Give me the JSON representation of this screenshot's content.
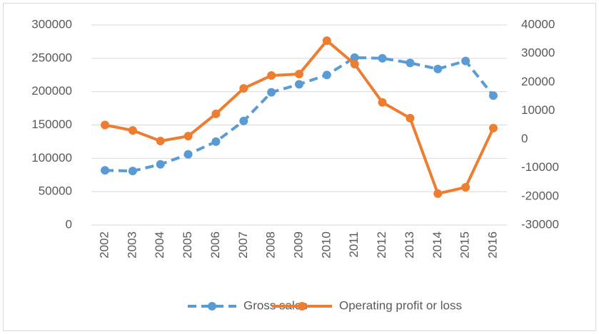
{
  "chart_data": {
    "type": "line",
    "categories": [
      "2002",
      "2003",
      "2004",
      "2005",
      "2006",
      "2007",
      "2008",
      "2009",
      "2010",
      "2011",
      "2012",
      "2013",
      "2014",
      "2015",
      "2016"
    ],
    "series": [
      {
        "name": "Gross sales",
        "color": "#5b9bd5",
        "dashed": true,
        "axis": "y",
        "values": [
          82000,
          81000,
          91000,
          106000,
          125000,
          156000,
          199000,
          211000,
          225000,
          251000,
          250000,
          243000,
          234000,
          246000,
          194000
        ]
      },
      {
        "name": "Operating profit or loss",
        "color": "#ed7d31",
        "dashed": false,
        "axis": "y2",
        "values": [
          5000,
          3100,
          -600,
          1100,
          8900,
          17800,
          22300,
          22800,
          34500,
          26300,
          12900,
          7400,
          -19000,
          -16800,
          3900
        ]
      }
    ],
    "ylim": [
      0,
      300000
    ],
    "yticks": [
      0,
      50000,
      100000,
      150000,
      200000,
      250000,
      300000
    ],
    "y2lim": [
      -30000,
      40000
    ],
    "y2ticks": [
      -30000,
      -20000,
      -10000,
      0,
      10000,
      20000,
      30000,
      40000
    ],
    "grid": true,
    "legend": "bottom"
  }
}
